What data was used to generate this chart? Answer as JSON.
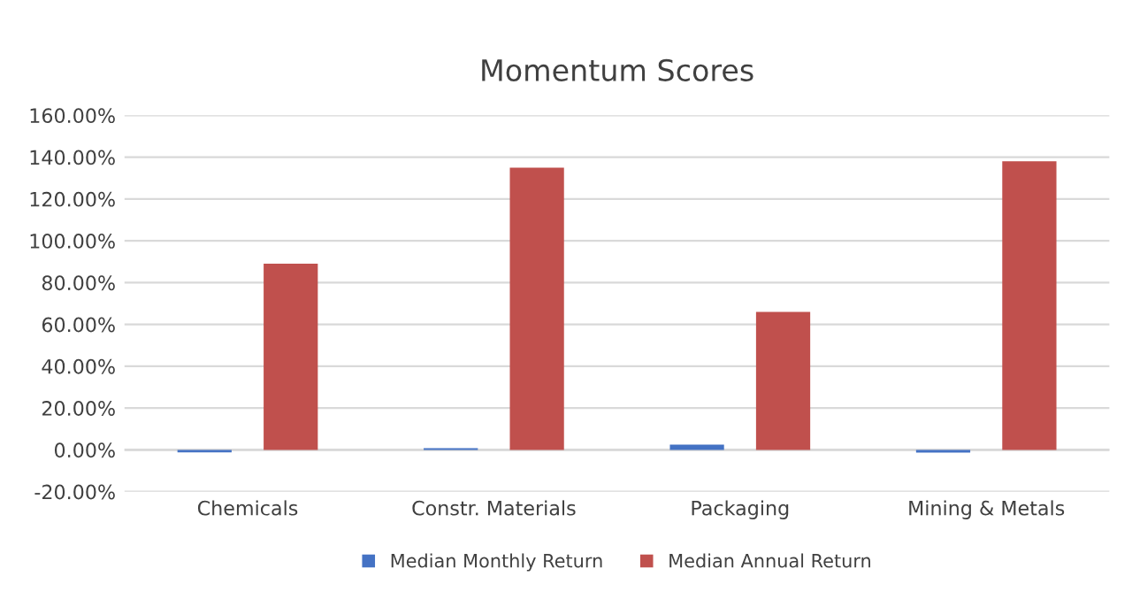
{
  "chart_data": {
    "type": "bar",
    "title": "Momentum Scores",
    "categories": [
      "Chemicals",
      "Constr. Materials",
      "Packaging",
      "Mining & Metals"
    ],
    "series": [
      {
        "name": "Median Monthly Return",
        "color": "#4472c4",
        "values": [
          -1.2,
          0.8,
          2.5,
          -1.3
        ]
      },
      {
        "name": "Median Annual Return",
        "color": "#c0504d",
        "values": [
          89,
          135,
          66,
          138
        ]
      }
    ],
    "ylim": [
      -20,
      160
    ],
    "yticks": [
      {
        "value": -20,
        "label": "-20.00%"
      },
      {
        "value": 0,
        "label": "0.00%"
      },
      {
        "value": 20,
        "label": "20.00%"
      },
      {
        "value": 40,
        "label": "40.00%"
      },
      {
        "value": 60,
        "label": "60.00%"
      },
      {
        "value": 80,
        "label": "80.00%"
      },
      {
        "value": 100,
        "label": "100.00%"
      },
      {
        "value": 120,
        "label": "120.00%"
      },
      {
        "value": 140,
        "label": "140.00%"
      },
      {
        "value": 160,
        "label": "160.00%"
      }
    ],
    "grid": "y",
    "legend": "bottom"
  }
}
